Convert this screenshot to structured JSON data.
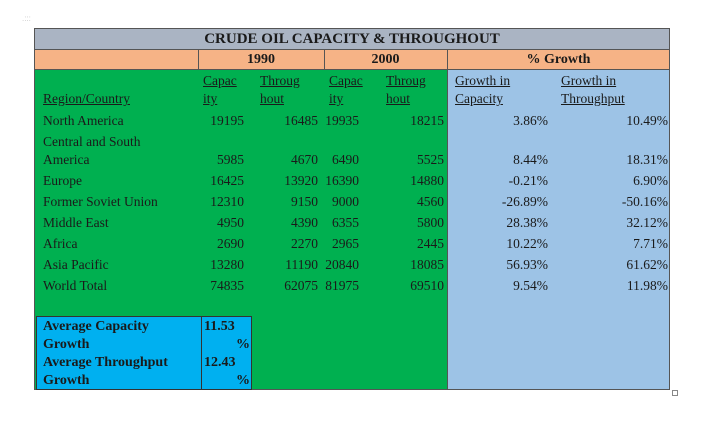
{
  "title": "CRUDE OIL CAPACITY & THROUGHOUT",
  "corner_mark": ".:::",
  "year1": "1990",
  "year2": "2000",
  "growth_header": "% Growth",
  "columns": {
    "region": "Region/Country",
    "cap1": [
      "Capac",
      "ity"
    ],
    "thr1": [
      "Throug",
      "hout"
    ],
    "cap2": [
      "Capac",
      "ity"
    ],
    "thr2": [
      "Throug",
      "hout"
    ],
    "gcap": [
      "Growth in",
      "Capacity"
    ],
    "gthr": [
      "Growth in",
      "Throughput"
    ]
  },
  "rows": [
    {
      "region": [
        "North America"
      ],
      "cap1": "19195",
      "thr1": "16485",
      "cap2": "19935",
      "thr2": "18215",
      "gcap": "3.86%",
      "gthr": "10.49%"
    },
    {
      "region": [
        "Central and South",
        "America"
      ],
      "cap1": "5985",
      "thr1": "4670",
      "cap2": "6490",
      "thr2": "5525",
      "gcap": "8.44%",
      "gthr": "18.31%"
    },
    {
      "region": [
        "Europe"
      ],
      "cap1": "16425",
      "thr1": "13920",
      "cap2": "16390",
      "thr2": "14880",
      "gcap": "-0.21%",
      "gthr": "6.90%"
    },
    {
      "region": [
        "Former Soviet Union"
      ],
      "cap1": "12310",
      "thr1": "9150",
      "cap2": "9000",
      "thr2": "4560",
      "gcap": "-26.89%",
      "gthr": "-50.16%"
    },
    {
      "region": [
        "Middle East"
      ],
      "cap1": "4950",
      "thr1": "4390",
      "cap2": "6355",
      "thr2": "5800",
      "gcap": "28.38%",
      "gthr": "32.12%"
    },
    {
      "region": [
        "Africa"
      ],
      "cap1": "2690",
      "thr1": "2270",
      "cap2": "2965",
      "thr2": "2445",
      "gcap": "10.22%",
      "gthr": "7.71%"
    },
    {
      "region": [
        "Asia Pacific"
      ],
      "cap1": "13280",
      "thr1": "11190",
      "cap2": "20840",
      "thr2": "18085",
      "gcap": "56.93%",
      "gthr": "61.62%"
    },
    {
      "region": [
        "World Total"
      ],
      "cap1": "74835",
      "thr1": "62075",
      "cap2": "81975",
      "thr2": "69510",
      "gcap": "9.54%",
      "gthr": "11.98%"
    }
  ],
  "averages": [
    {
      "label": [
        "Average Capacity",
        "Growth"
      ],
      "value": [
        "11.53",
        "%"
      ]
    },
    {
      "label": [
        "Average Throughput",
        "Growth"
      ],
      "value": [
        "12.43",
        "%"
      ]
    }
  ],
  "colors": {
    "title_bg": "#aab4c3",
    "band_bg": "#f6b386",
    "data_green": "#00b050",
    "growth_blue": "#9dc3e6",
    "avg_cyan": "#00b0f0"
  }
}
